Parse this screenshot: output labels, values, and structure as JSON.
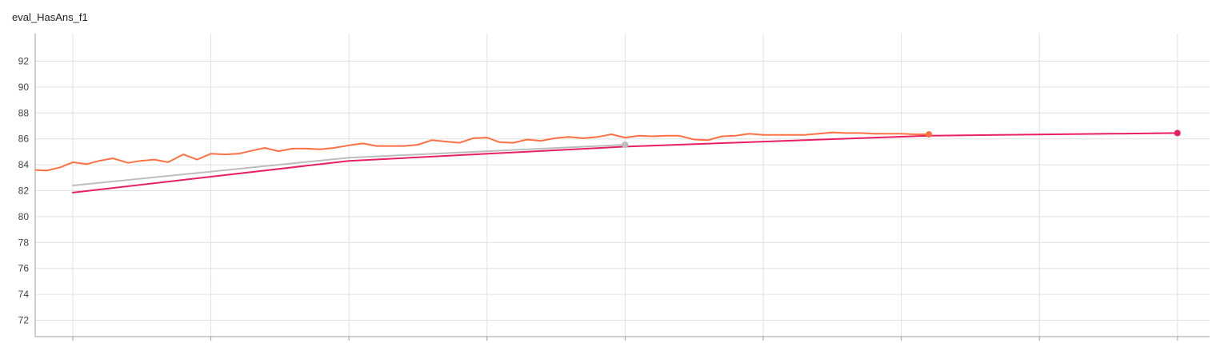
{
  "chart_data": {
    "type": "line",
    "title": "eval_HasAns_f1",
    "xlabel": "",
    "ylabel": "",
    "ylim": [
      71,
      94
    ],
    "xlim": [
      -0.27,
      8.2
    ],
    "yticks": [
      72,
      74,
      76,
      78,
      80,
      82,
      84,
      86,
      88,
      90,
      92
    ],
    "x_gridlines": [
      0,
      1,
      2,
      3,
      4,
      5,
      6,
      7,
      8
    ],
    "grid": true,
    "legend": "none",
    "series": [
      {
        "color": "#ff7043",
        "x": [
          -0.27,
          -0.19,
          -0.09,
          0.0,
          0.1,
          0.19,
          0.29,
          0.4,
          0.49,
          0.59,
          0.69,
          0.8,
          0.9,
          1.0,
          1.1,
          1.2,
          1.3,
          1.39,
          1.49,
          1.59,
          1.69,
          1.79,
          1.89,
          2.0,
          2.1,
          2.2,
          2.29,
          2.4,
          2.5,
          2.6,
          2.69,
          2.8,
          2.9,
          3.0,
          3.09,
          3.19,
          3.29,
          3.39,
          3.49,
          3.59,
          3.7,
          3.8,
          3.9,
          4.0,
          4.1,
          4.2,
          4.3,
          4.39,
          4.5,
          4.6,
          4.7,
          4.8,
          4.9,
          5.0,
          5.1,
          5.2,
          5.3,
          5.4,
          5.5,
          5.6,
          5.7,
          5.8,
          5.9,
          6.0,
          6.1,
          6.2
        ],
        "values": [
          83.6,
          83.55,
          83.8,
          84.2,
          84.05,
          84.3,
          84.5,
          84.15,
          84.3,
          84.4,
          84.2,
          84.8,
          84.4,
          84.85,
          84.8,
          84.85,
          85.1,
          85.3,
          85.05,
          85.25,
          85.25,
          85.2,
          85.3,
          85.5,
          85.65,
          85.45,
          85.45,
          85.45,
          85.55,
          85.9,
          85.8,
          85.7,
          86.05,
          86.1,
          85.75,
          85.7,
          85.95,
          85.85,
          86.05,
          86.15,
          86.05,
          86.15,
          86.35,
          86.1,
          86.25,
          86.2,
          86.25,
          86.25,
          85.95,
          85.9,
          86.2,
          86.25,
          86.4,
          86.3,
          86.3,
          86.3,
          86.3,
          86.4,
          86.5,
          86.45,
          86.45,
          86.4,
          86.4,
          86.4,
          86.35,
          86.35
        ]
      },
      {
        "color": "#bdbdbd",
        "x": [
          0,
          2,
          4
        ],
        "values": [
          82.4,
          84.55,
          85.55
        ]
      },
      {
        "color": "#e91e63",
        "x": [
          0,
          2,
          4,
          6.2,
          8
        ],
        "values": [
          81.85,
          84.3,
          85.4,
          86.25,
          86.45
        ]
      }
    ]
  }
}
